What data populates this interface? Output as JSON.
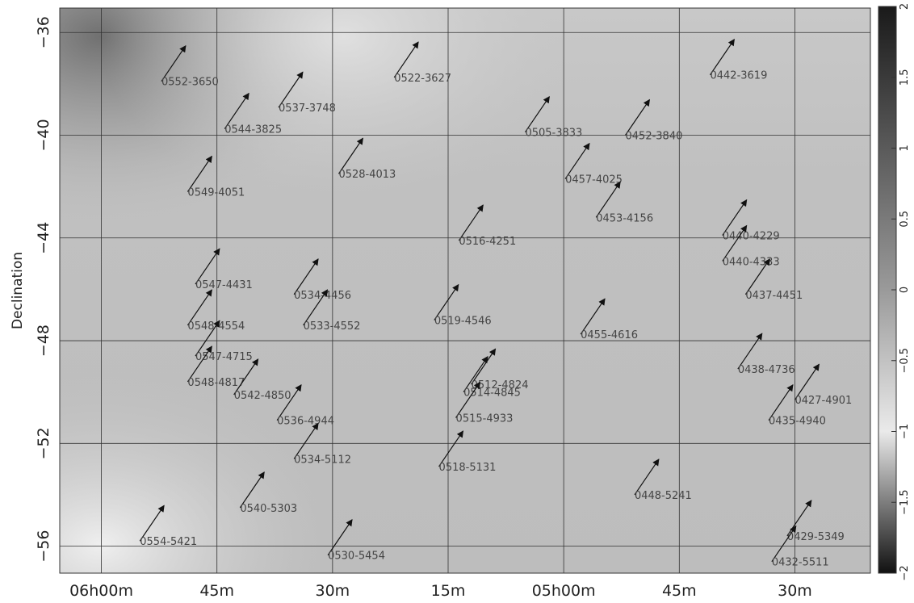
{
  "chart_data": {
    "type": "scatter",
    "ylabel": "Declination",
    "xlabel": "",
    "x_ticks": [
      {
        "value": 90.0,
        "label": "06h00m"
      },
      {
        "value": 86.25,
        "label": "45m"
      },
      {
        "value": 82.5,
        "label": "30m"
      },
      {
        "value": 78.75,
        "label": "15m"
      },
      {
        "value": 75.0,
        "label": "05h00m"
      },
      {
        "value": 71.25,
        "label": "45m"
      },
      {
        "value": 67.5,
        "label": "30m"
      }
    ],
    "y_ticks": [
      -36,
      -40,
      -44,
      -48,
      -52,
      -56
    ],
    "xlim": [
      91.35,
      65.05
    ],
    "ylim": [
      -57.05,
      -35.05
    ],
    "grid": true,
    "colorbar": {
      "min": -2,
      "max": 2,
      "ticks": [
        2,
        1.5,
        1,
        0.5,
        0,
        -0.5,
        -1,
        -1.5,
        -2
      ],
      "colormap": "grayscale"
    },
    "arrow_color": "#111111",
    "sources": [
      {
        "name": "0552-3650",
        "ra": 88.05,
        "dec": -37.9
      },
      {
        "name": "0537-3748",
        "ra": 84.25,
        "dec": -38.92
      },
      {
        "name": "0544-3825",
        "ra": 86.0,
        "dec": -39.75
      },
      {
        "name": "0522-3627",
        "ra": 80.5,
        "dec": -37.75
      },
      {
        "name": "0505-3833",
        "ra": 76.25,
        "dec": -39.88
      },
      {
        "name": "0452-3840",
        "ra": 73.0,
        "dec": -40.0
      },
      {
        "name": "0442-3619",
        "ra": 70.25,
        "dec": -37.65
      },
      {
        "name": "0549-4051",
        "ra": 87.2,
        "dec": -42.2
      },
      {
        "name": "0528-4013",
        "ra": 82.3,
        "dec": -41.5
      },
      {
        "name": "0457-4025",
        "ra": 74.95,
        "dec": -41.7
      },
      {
        "name": "0453-4156",
        "ra": 73.95,
        "dec": -43.2
      },
      {
        "name": "0516-4251",
        "ra": 78.4,
        "dec": -44.1
      },
      {
        "name": "0440-4229",
        "ra": 69.85,
        "dec": -43.9
      },
      {
        "name": "0440-4333",
        "ra": 69.85,
        "dec": -44.9
      },
      {
        "name": "0437-4451",
        "ra": 69.1,
        "dec": -46.2
      },
      {
        "name": "0547-4431",
        "ra": 86.95,
        "dec": -45.8
      },
      {
        "name": "0534-4456",
        "ra": 83.75,
        "dec": -46.2
      },
      {
        "name": "0548-4554",
        "ra": 87.2,
        "dec": -47.4
      },
      {
        "name": "0533-4552",
        "ra": 83.45,
        "dec": -47.4
      },
      {
        "name": "0519-4546",
        "ra": 79.2,
        "dec": -47.2
      },
      {
        "name": "0455-4616",
        "ra": 74.45,
        "dec": -47.75
      },
      {
        "name": "0547-4715",
        "ra": 86.95,
        "dec": -48.6
      },
      {
        "name": "0438-4736",
        "ra": 69.35,
        "dec": -49.1
      },
      {
        "name": "0548-4817",
        "ra": 87.2,
        "dec": -49.6
      },
      {
        "name": "0512-4824",
        "ra": 78.0,
        "dec": -49.7
      },
      {
        "name": "0514-4845",
        "ra": 78.25,
        "dec": -50.0
      },
      {
        "name": "0542-4850",
        "ra": 85.7,
        "dec": -50.1
      },
      {
        "name": "0427-4901",
        "ra": 67.5,
        "dec": -50.3
      },
      {
        "name": "0515-4933",
        "ra": 78.5,
        "dec": -51.0
      },
      {
        "name": "0536-4944",
        "ra": 84.3,
        "dec": -51.1
      },
      {
        "name": "0435-4940",
        "ra": 68.35,
        "dec": -51.1
      },
      {
        "name": "0534-5112",
        "ra": 83.75,
        "dec": -52.6
      },
      {
        "name": "0518-5131",
        "ra": 79.05,
        "dec": -52.9
      },
      {
        "name": "0448-5241",
        "ra": 72.7,
        "dec": -54.0
      },
      {
        "name": "0540-5303",
        "ra": 85.5,
        "dec": -54.5
      },
      {
        "name": "0429-5349",
        "ra": 67.75,
        "dec": -55.6
      },
      {
        "name": "0554-5421",
        "ra": 88.75,
        "dec": -55.8
      },
      {
        "name": "0530-5454",
        "ra": 82.65,
        "dec": -56.35
      },
      {
        "name": "0432-5511",
        "ra": 68.25,
        "dec": -56.6
      }
    ]
  }
}
